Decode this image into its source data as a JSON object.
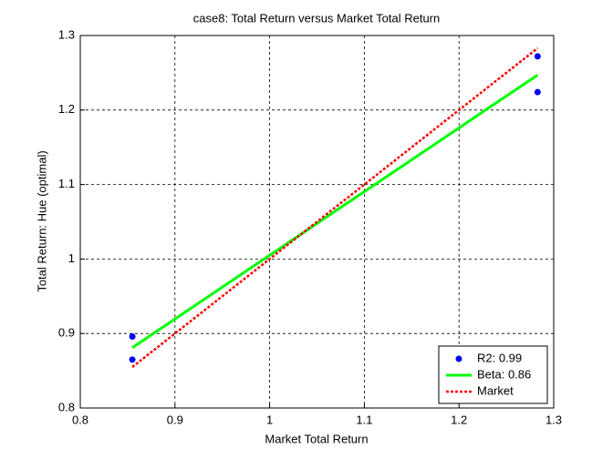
{
  "chart_data": {
    "type": "scatter",
    "title": "case8: Total Return versus Market Total Return",
    "xlabel": "Market Total Return",
    "ylabel": "Total Return: Hue (optimal)",
    "xlim": [
      0.8,
      1.3
    ],
    "xticks": [
      0.8,
      0.9,
      1,
      1.1,
      1.2,
      1.3
    ],
    "ylim": [
      0.8,
      1.3
    ],
    "yticks": [
      0.8,
      0.9,
      1,
      1.1,
      1.2,
      1.3
    ],
    "grid": true,
    "legend": "southeast",
    "series": [
      {
        "name": "R2: 0.99",
        "color": "#0000ff",
        "style": "markers",
        "x": [
          0.855,
          0.855,
          1.283,
          1.283
        ],
        "values": [
          0.896,
          0.865,
          1.272,
          1.224
        ]
      },
      {
        "name": "Beta: 0.86",
        "color": "#00ff00",
        "style": "solid",
        "x": [
          0.855,
          1.283
        ],
        "values": [
          0.881,
          1.247
        ]
      },
      {
        "name": "Market",
        "color": "#ff0000",
        "style": "dotted",
        "x": [
          0.855,
          1.283
        ],
        "values": [
          0.855,
          1.283
        ]
      }
    ]
  }
}
